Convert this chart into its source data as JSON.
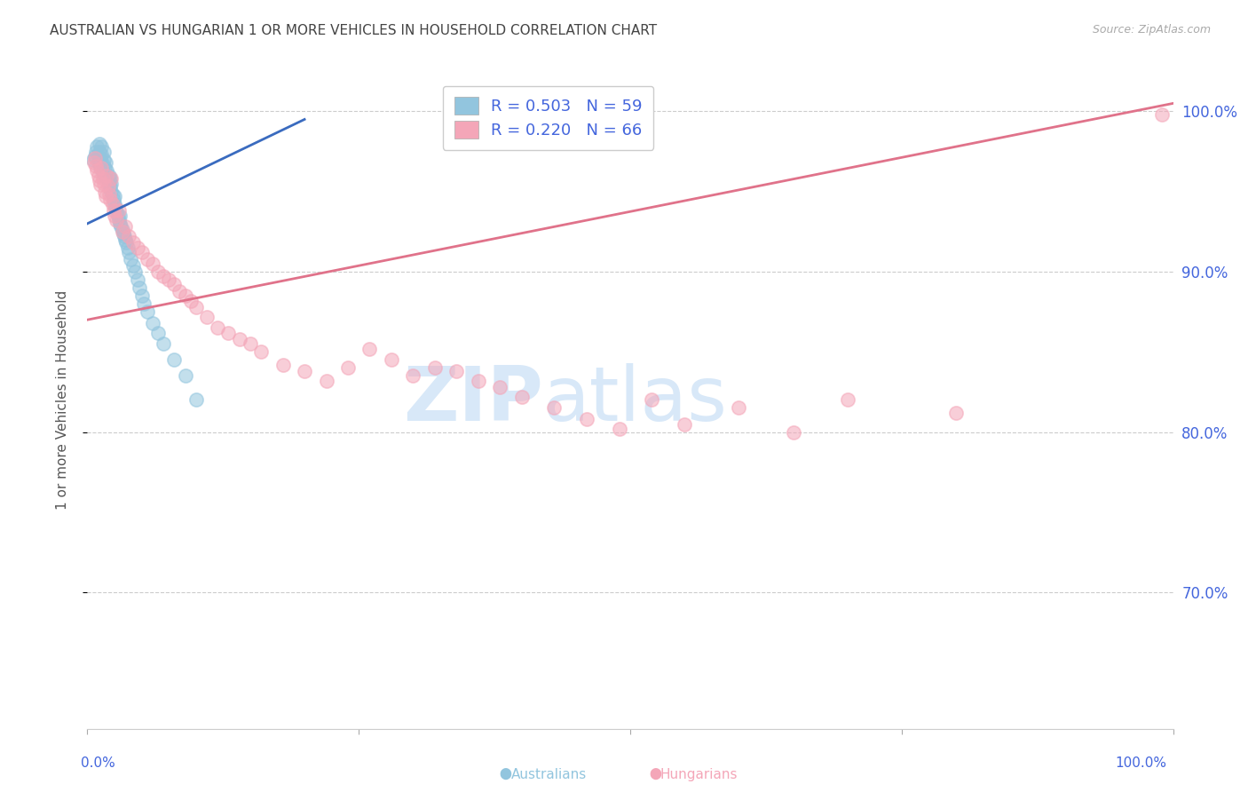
{
  "title": "AUSTRALIAN VS HUNGARIAN 1 OR MORE VEHICLES IN HOUSEHOLD CORRELATION CHART",
  "source": "Source: ZipAtlas.com",
  "ylabel": "1 or more Vehicles in Household",
  "ytick_labels": [
    "70.0%",
    "80.0%",
    "90.0%",
    "100.0%"
  ],
  "ytick_values": [
    0.7,
    0.8,
    0.9,
    1.0
  ],
  "xlim": [
    0.0,
    1.0
  ],
  "ylim": [
    0.615,
    1.025
  ],
  "aus_R": 0.503,
  "hun_R": 0.22,
  "aus_N": 59,
  "hun_N": 66,
  "aus_color": "#92c5de",
  "hun_color": "#f4a6b8",
  "aus_line_color": "#3a6bbf",
  "hun_line_color": "#e0728a",
  "bg_color": "#ffffff",
  "grid_color": "#cccccc",
  "title_color": "#444444",
  "source_color": "#aaaaaa",
  "axis_label_color": "#4466dd",
  "watermark_color": "#d8e8f8",
  "marker_size": 11,
  "marker_alpha": 0.55,
  "australian_x": [
    0.005,
    0.007,
    0.008,
    0.009,
    0.01,
    0.01,
    0.011,
    0.011,
    0.012,
    0.012,
    0.013,
    0.013,
    0.014,
    0.014,
    0.015,
    0.015,
    0.016,
    0.016,
    0.017,
    0.018,
    0.019,
    0.02,
    0.02,
    0.021,
    0.021,
    0.022,
    0.022,
    0.023,
    0.024,
    0.025,
    0.025,
    0.026,
    0.027,
    0.028,
    0.029,
    0.03,
    0.03,
    0.031,
    0.032,
    0.033,
    0.034,
    0.035,
    0.036,
    0.037,
    0.038,
    0.04,
    0.042,
    0.044,
    0.046,
    0.048,
    0.05,
    0.052,
    0.055,
    0.06,
    0.065,
    0.07,
    0.08,
    0.09,
    0.1
  ],
  "australian_y": [
    0.97,
    0.972,
    0.975,
    0.978,
    0.968,
    0.972,
    0.975,
    0.98,
    0.965,
    0.97,
    0.973,
    0.978,
    0.962,
    0.967,
    0.97,
    0.975,
    0.96,
    0.965,
    0.968,
    0.963,
    0.958,
    0.955,
    0.96,
    0.953,
    0.958,
    0.95,
    0.955,
    0.948,
    0.945,
    0.942,
    0.947,
    0.94,
    0.937,
    0.935,
    0.932,
    0.93,
    0.935,
    0.928,
    0.926,
    0.924,
    0.922,
    0.92,
    0.918,
    0.915,
    0.912,
    0.908,
    0.904,
    0.9,
    0.895,
    0.89,
    0.885,
    0.88,
    0.875,
    0.868,
    0.862,
    0.855,
    0.845,
    0.835,
    0.82
  ],
  "hungarian_x": [
    0.006,
    0.007,
    0.008,
    0.009,
    0.01,
    0.011,
    0.012,
    0.013,
    0.014,
    0.015,
    0.016,
    0.017,
    0.018,
    0.019,
    0.02,
    0.021,
    0.022,
    0.023,
    0.024,
    0.025,
    0.027,
    0.029,
    0.032,
    0.035,
    0.038,
    0.042,
    0.046,
    0.05,
    0.055,
    0.06,
    0.065,
    0.07,
    0.075,
    0.08,
    0.085,
    0.09,
    0.095,
    0.1,
    0.11,
    0.12,
    0.13,
    0.14,
    0.15,
    0.16,
    0.18,
    0.2,
    0.22,
    0.24,
    0.26,
    0.28,
    0.3,
    0.32,
    0.34,
    0.36,
    0.38,
    0.4,
    0.43,
    0.46,
    0.49,
    0.52,
    0.55,
    0.6,
    0.65,
    0.7,
    0.8,
    0.99
  ],
  "hungarian_y": [
    0.968,
    0.971,
    0.966,
    0.963,
    0.96,
    0.957,
    0.954,
    0.965,
    0.958,
    0.955,
    0.95,
    0.947,
    0.96,
    0.953,
    0.948,
    0.945,
    0.958,
    0.942,
    0.938,
    0.935,
    0.932,
    0.938,
    0.925,
    0.928,
    0.922,
    0.918,
    0.915,
    0.912,
    0.908,
    0.905,
    0.9,
    0.897,
    0.895,
    0.892,
    0.888,
    0.885,
    0.882,
    0.878,
    0.872,
    0.865,
    0.862,
    0.858,
    0.855,
    0.85,
    0.842,
    0.838,
    0.832,
    0.84,
    0.852,
    0.845,
    0.835,
    0.84,
    0.838,
    0.832,
    0.828,
    0.822,
    0.815,
    0.808,
    0.802,
    0.82,
    0.805,
    0.815,
    0.8,
    0.82,
    0.812,
    0.998
  ],
  "aus_line_x0": 0.0,
  "aus_line_x1": 0.2,
  "aus_line_y0": 0.93,
  "aus_line_y1": 0.995,
  "hun_line_x0": 0.0,
  "hun_line_x1": 1.0,
  "hun_line_y0": 0.87,
  "hun_line_y1": 1.005
}
